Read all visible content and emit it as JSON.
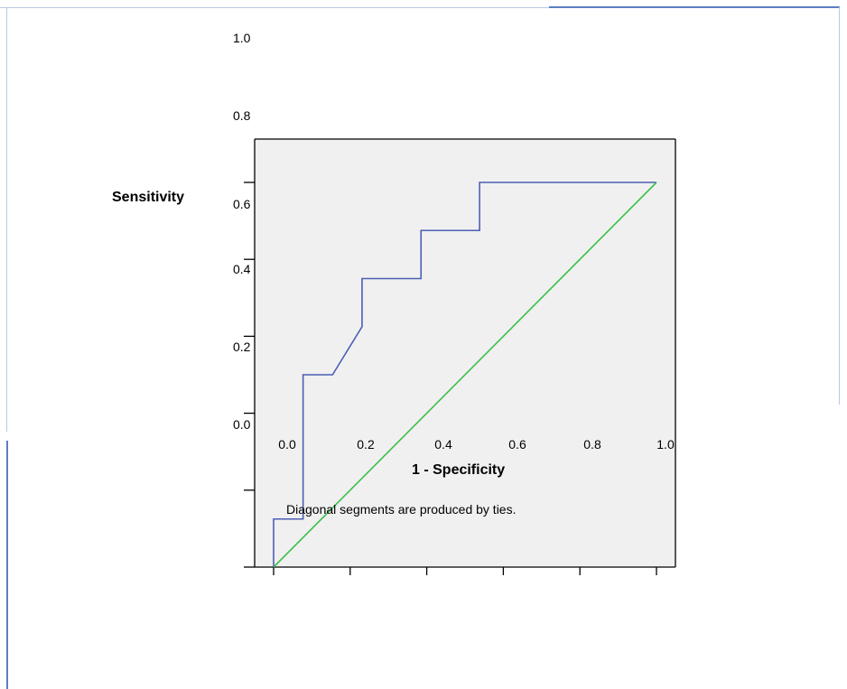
{
  "chart_data": {
    "type": "line",
    "xlabel": "1 - Specificity",
    "ylabel": "Sensitivity",
    "note": "Diagonal segments are produced by ties.",
    "xlim": [
      0,
      1
    ],
    "ylim": [
      0,
      1
    ],
    "x_ticks": [
      "0.0",
      "0.2",
      "0.4",
      "0.6",
      "0.8",
      "1.0"
    ],
    "y_ticks": [
      "0.0",
      "0.2",
      "0.4",
      "0.6",
      "0.8",
      "1.0"
    ],
    "series": [
      {
        "color": "#4b5fb5",
        "x": [
          0.0,
          0.0,
          0.077,
          0.077,
          0.154,
          0.231,
          0.231,
          0.385,
          0.385,
          0.538,
          0.538,
          1.0
        ],
        "y": [
          0.0,
          0.125,
          0.125,
          0.5,
          0.5,
          0.625,
          0.75,
          0.75,
          0.875,
          0.875,
          1.0,
          1.0
        ]
      },
      {
        "color": "#3cc04a",
        "x": [
          0.0,
          1.0
        ],
        "y": [
          0.0,
          1.0
        ]
      }
    ],
    "grid": false,
    "plot_background": "#f0f0f0"
  }
}
